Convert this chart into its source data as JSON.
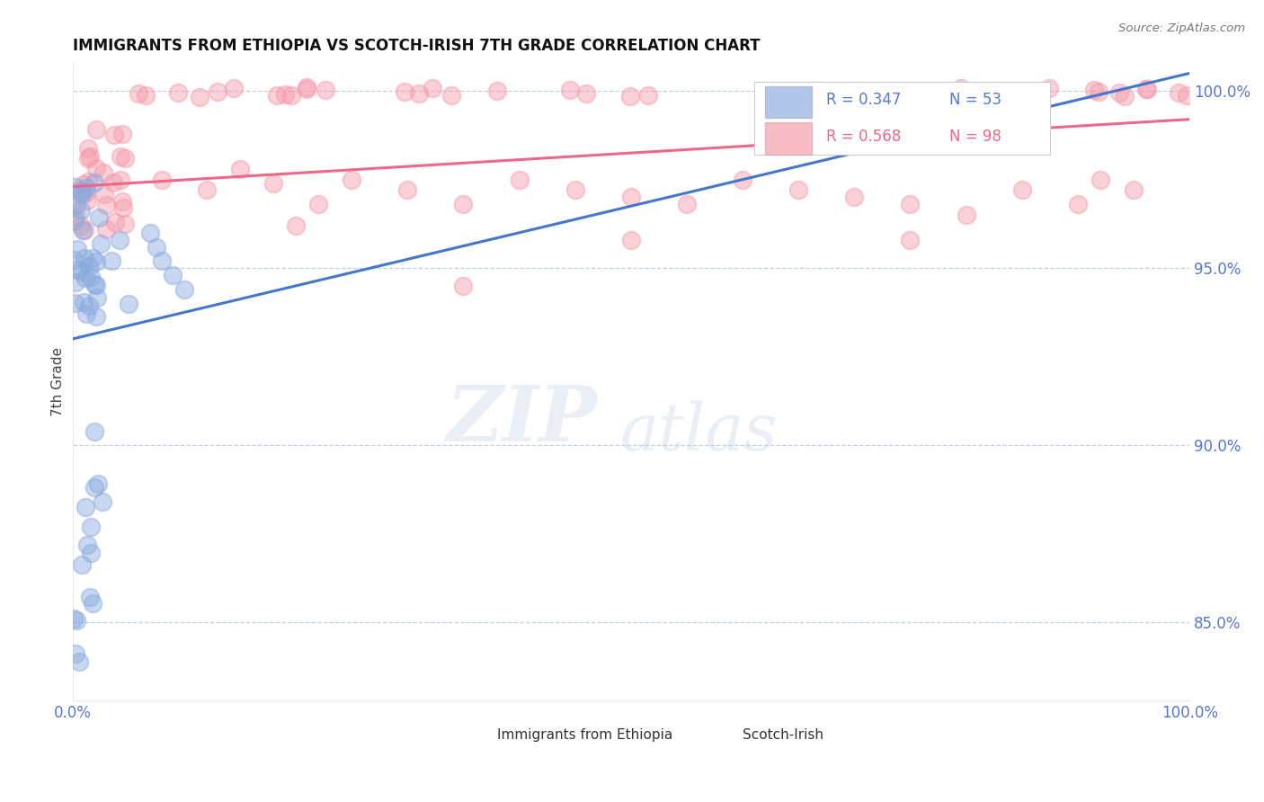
{
  "title": "IMMIGRANTS FROM ETHIOPIA VS SCOTCH-IRISH 7TH GRADE CORRELATION CHART",
  "source": "Source: ZipAtlas.com",
  "ylabel": "7th Grade",
  "watermark_zip": "ZIP",
  "watermark_atlas": "atlas",
  "legend_blue_r": "R = 0.347",
  "legend_blue_n": "N = 53",
  "legend_pink_r": "R = 0.568",
  "legend_pink_n": "N = 98",
  "blue_color": "#88AADE",
  "pink_color": "#F599AA",
  "blue_line_color": "#4477CC",
  "pink_line_color": "#EE6688",
  "axis_label_color": "#5577CC",
  "grid_color": "#BBCCDD",
  "ytick_labels": [
    "85.0%",
    "90.0%",
    "95.0%",
    "100.0%"
  ],
  "ytick_values": [
    0.85,
    0.9,
    0.95,
    1.0
  ],
  "xtick_labels": [
    "0.0%",
    "100.0%"
  ],
  "xtick_values": [
    0.0,
    1.0
  ],
  "xmin": 0.0,
  "xmax": 1.0,
  "ymin": 0.828,
  "ymax": 1.008,
  "blue_trend_x0": 0.0,
  "blue_trend_x1": 1.0,
  "blue_trend_y0": 0.93,
  "blue_trend_y1": 1.005,
  "pink_trend_x0": 0.0,
  "pink_trend_x1": 1.0,
  "pink_trend_y0": 0.973,
  "pink_trend_y1": 0.992
}
